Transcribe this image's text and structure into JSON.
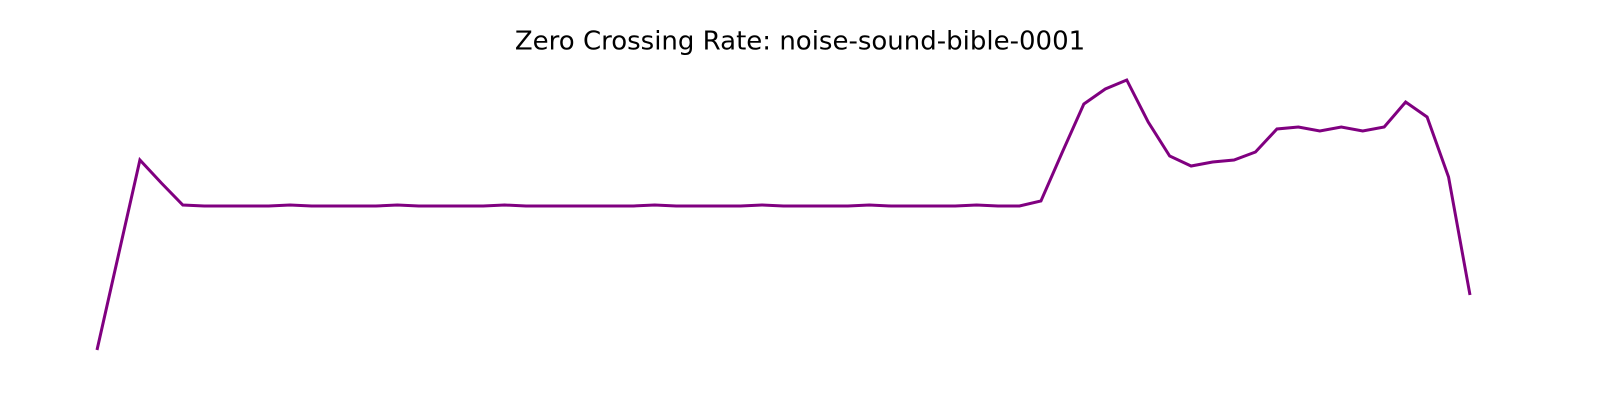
{
  "chart_data": {
    "type": "line",
    "title": "Zero Crossing Rate: noise-sound-bible-0001",
    "series": [
      {
        "color": "#800080",
        "values": [
          0.005,
          0.0525,
          0.1,
          0.0885,
          0.0775,
          0.077,
          0.077,
          0.077,
          0.077,
          0.0775,
          0.077,
          0.077,
          0.077,
          0.077,
          0.0775,
          0.077,
          0.077,
          0.077,
          0.077,
          0.0775,
          0.077,
          0.077,
          0.077,
          0.077,
          0.077,
          0.077,
          0.0775,
          0.077,
          0.077,
          0.077,
          0.077,
          0.0775,
          0.077,
          0.077,
          0.077,
          0.077,
          0.0775,
          0.077,
          0.077,
          0.077,
          0.077,
          0.0775,
          0.077,
          0.077,
          0.0795,
          0.104,
          0.128,
          0.1355,
          0.14,
          0.119,
          0.102,
          0.097,
          0.099,
          0.1,
          0.104,
          0.1155,
          0.1165,
          0.1145,
          0.1165,
          0.1145,
          0.1165,
          0.129,
          0.1215,
          0.0915,
          0.0325
        ]
      }
    ]
  }
}
